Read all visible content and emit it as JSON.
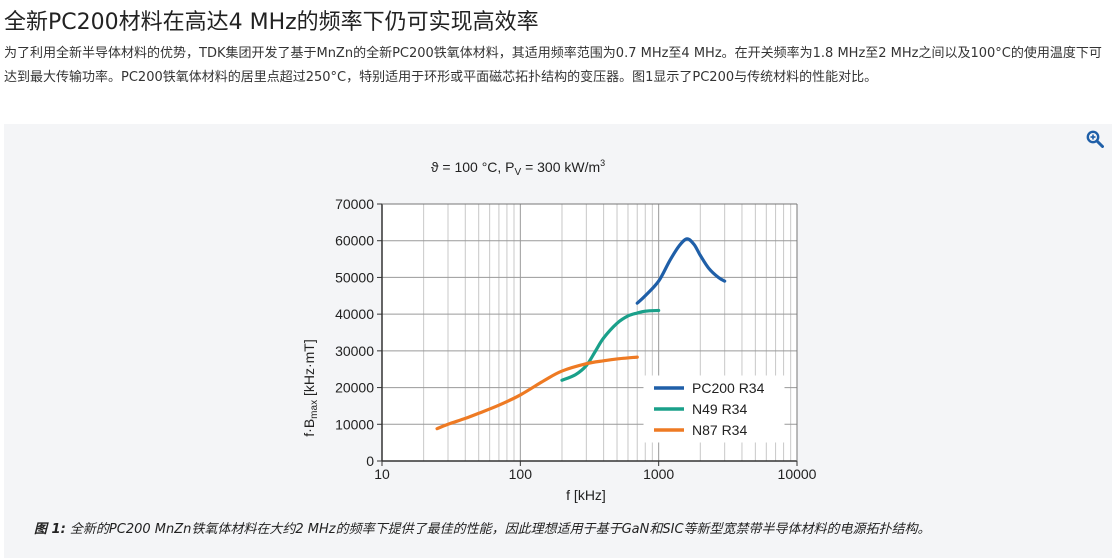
{
  "article": {
    "title": "全新PC200材料在高达4 MHz的频率下仍可实现高效率",
    "paragraph": "为了利用全新半导体材料的优势，TDK集团开发了基于MnZn的全新PC200铁氧体材料，其适用频率范围为0.7 MHz至4 MHz。在开关频率为1.8 MHz至2 MHz之间以及100°C的使用温度下可达到最大传输功率。PC200铁氧体材料的居里点超过250°C，特别适用于环形或平面磁芯拓扑结构的变压器。图1显示了PC200与传统材料的性能对比。"
  },
  "figure": {
    "zoom_icon": "zoom-in-icon",
    "caption_label": "图 1:",
    "caption_text": " 全新的PC200 MnZn铁氧体材料在大约2 MHz的频率下提供了最佳的性能，因此理想适用于基于GaN和SIC等新型宽禁带半导体材料的电源拓扑结构。"
  },
  "chart_data": {
    "type": "line",
    "title": "ϑ = 100 °C, P",
    "title_sub": "V",
    "title_tail": " = 300 kW/m",
    "title_sup": "3",
    "xlabel": "f [kHz]",
    "ylabel_main": "f·B",
    "ylabel_sub": "max",
    "ylabel_tail": " [kHz·mT]",
    "xscale": "log",
    "xlim": [
      10,
      10000
    ],
    "ylim": [
      0,
      70000
    ],
    "xticks": [
      10,
      100,
      1000,
      10000
    ],
    "xtick_labels": [
      "10",
      "100",
      "1000",
      "10000"
    ],
    "yticks": [
      0,
      10000,
      20000,
      30000,
      40000,
      50000,
      60000,
      70000
    ],
    "ytick_labels": [
      "0",
      "10000",
      "20000",
      "30000",
      "40000",
      "50000",
      "60000",
      "70000"
    ],
    "grid": true,
    "legend_position": "lower-right",
    "series": [
      {
        "name": "PC200 R34",
        "color": "#1f5fa8",
        "x": [
          700,
          800,
          1000,
          1200,
          1400,
          1600,
          1800,
          2000,
          2300,
          2700,
          3000
        ],
        "y": [
          43000,
          45000,
          49000,
          54500,
          58500,
          60500,
          59000,
          56000,
          52500,
          50000,
          49000
        ]
      },
      {
        "name": "N49 R34",
        "color": "#1aa08a",
        "x": [
          200,
          250,
          300,
          350,
          400,
          500,
          600,
          700,
          800,
          1000
        ],
        "y": [
          22000,
          23500,
          26000,
          30000,
          33500,
          37500,
          39500,
          40300,
          40800,
          41000
        ]
      },
      {
        "name": "N87 R34",
        "color": "#ee7a23",
        "x": [
          25,
          30,
          40,
          50,
          70,
          100,
          150,
          200,
          300,
          400,
          500,
          700
        ],
        "y": [
          8800,
          10000,
          11600,
          13000,
          15200,
          18000,
          22000,
          24500,
          26500,
          27300,
          27800,
          28300
        ]
      }
    ]
  }
}
